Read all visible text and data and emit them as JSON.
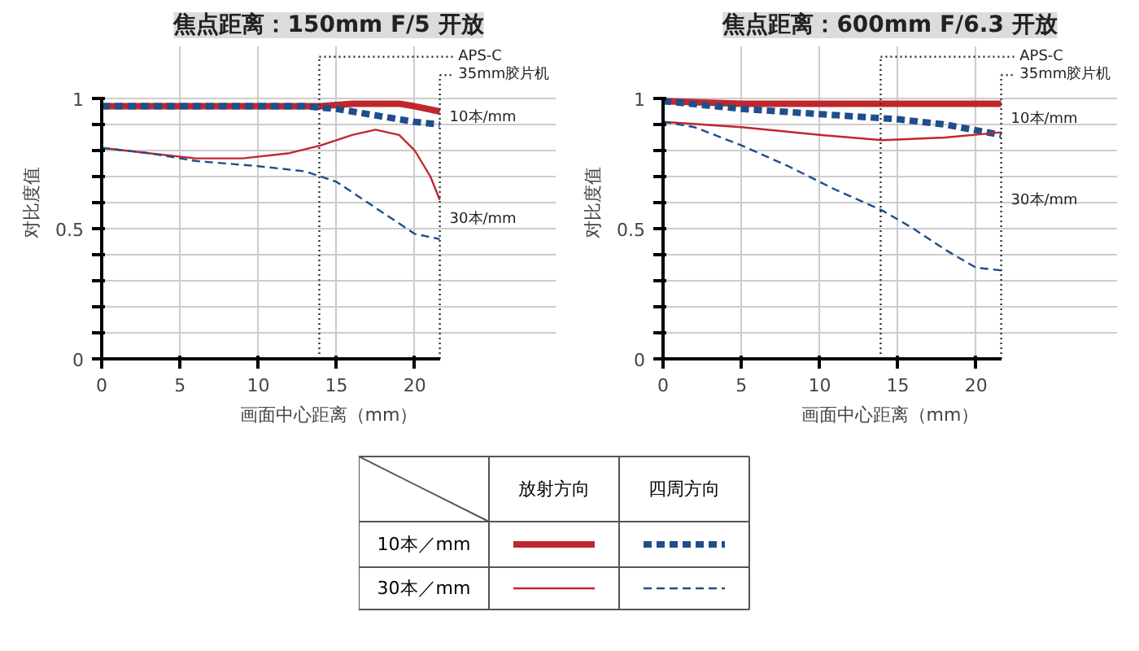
{
  "chart_data": [
    {
      "type": "line",
      "title": "焦点距离：150mm F/5 开放",
      "xlabel": "画面中心距离（mm）",
      "ylabel": "对比度值",
      "xlim": [
        0,
        21.6
      ],
      "ylim": [
        0,
        1
      ],
      "xticks": [
        0,
        5,
        10,
        15,
        20
      ],
      "yticks": [
        0,
        {
          "value": 0.1,
          "label": null
        },
        {
          "value": 0.2,
          "label": null
        },
        {
          "value": 0.3,
          "label": null
        },
        {
          "value": 0.4,
          "label": null
        },
        0.5,
        {
          "value": 0.6,
          "label": null
        },
        {
          "value": 0.7,
          "label": null
        },
        {
          "value": 0.8,
          "label": null
        },
        {
          "value": 0.9,
          "label": null
        },
        1
      ],
      "grid": true,
      "marker": "none",
      "ref_lines": [
        {
          "axis": "x",
          "value": 13.9,
          "label": "APS-C",
          "line_style": "dotted",
          "color": "#333333"
        },
        {
          "axis": "x",
          "value": 21.6,
          "label": "35mm胶片机",
          "line_style": "dotted",
          "color": "#333333"
        }
      ],
      "annotations": [
        "10本/mm",
        "30本/mm"
      ],
      "series": [
        {
          "color": "#c0272d",
          "line_style": "solid",
          "x": [
            0,
            3,
            6,
            9,
            12,
            14,
            16,
            17,
            19,
            20,
            21.6
          ],
          "values": [
            0.97,
            0.97,
            0.97,
            0.97,
            0.97,
            0.97,
            0.98,
            0.98,
            0.98,
            0.97,
            0.95
          ]
        },
        {
          "color": "#1f4e8c",
          "line_style": "dashed",
          "x": [
            0,
            3,
            6,
            9,
            12,
            13,
            15,
            17,
            18,
            20,
            21.6
          ],
          "values": [
            0.97,
            0.97,
            0.97,
            0.97,
            0.97,
            0.97,
            0.96,
            0.94,
            0.93,
            0.91,
            0.9
          ]
        },
        {
          "color": "#c0272d",
          "line_style": "solid",
          "x": [
            0,
            3,
            6,
            9,
            12,
            14,
            16,
            17.5,
            19,
            20,
            21,
            21.6
          ],
          "values": [
            0.81,
            0.79,
            0.77,
            0.77,
            0.79,
            0.82,
            0.86,
            0.88,
            0.86,
            0.8,
            0.7,
            0.61
          ]
        },
        {
          "color": "#1f4e8c",
          "line_style": "dashed",
          "x": [
            0,
            3,
            6,
            10,
            13,
            15,
            17,
            19,
            20,
            21.6
          ],
          "values": [
            0.81,
            0.79,
            0.76,
            0.74,
            0.72,
            0.68,
            0.6,
            0.52,
            0.48,
            0.46
          ]
        }
      ]
    },
    {
      "type": "line",
      "title": "焦点距离：600mm F/6.3 开放",
      "xlabel": "画面中心距离（mm）",
      "ylabel": "对比度值",
      "xlim": [
        0,
        21.6
      ],
      "ylim": [
        0,
        1
      ],
      "xticks": [
        0,
        5,
        10,
        15,
        20
      ],
      "yticks": [
        0,
        {
          "value": 0.1,
          "label": null
        },
        {
          "value": 0.2,
          "label": null
        },
        {
          "value": 0.3,
          "label": null
        },
        {
          "value": 0.4,
          "label": null
        },
        0.5,
        {
          "value": 0.6,
          "label": null
        },
        {
          "value": 0.7,
          "label": null
        },
        {
          "value": 0.8,
          "label": null
        },
        {
          "value": 0.9,
          "label": null
        },
        1
      ],
      "grid": true,
      "marker": "none",
      "ref_lines": [
        {
          "axis": "x",
          "value": 13.9,
          "label": "APS-C",
          "line_style": "dotted",
          "color": "#333333"
        },
        {
          "axis": "x",
          "value": 21.6,
          "label": "35mm胶片机",
          "line_style": "dotted",
          "color": "#333333"
        }
      ],
      "annotations": [
        "10本/mm",
        "30本/mm"
      ],
      "series": [
        {
          "color": "#c0272d",
          "line_style": "solid",
          "x": [
            0,
            5,
            10,
            15,
            21.6
          ],
          "values": [
            0.99,
            0.98,
            0.98,
            0.98,
            0.98
          ]
        },
        {
          "color": "#1f4e8c",
          "line_style": "dashed",
          "x": [
            0,
            5,
            10,
            15,
            18,
            21.6
          ],
          "values": [
            0.99,
            0.96,
            0.94,
            0.92,
            0.9,
            0.86
          ]
        },
        {
          "color": "#c0272d",
          "line_style": "solid",
          "x": [
            0,
            5,
            10,
            14,
            18,
            21.6
          ],
          "values": [
            0.91,
            0.89,
            0.86,
            0.84,
            0.85,
            0.87
          ]
        },
        {
          "color": "#1f4e8c",
          "line_style": "dashed",
          "x": [
            0,
            2,
            5,
            8,
            11,
            14,
            16,
            18,
            20,
            21.6
          ],
          "values": [
            0.91,
            0.89,
            0.82,
            0.74,
            0.65,
            0.57,
            0.5,
            0.42,
            0.35,
            0.34
          ]
        }
      ]
    },
    {
      "type": "other",
      "annotations": [
        "放射方向",
        "四周方向",
        "10本／mm",
        "30本／mm"
      ],
      "series": [
        {
          "color": "#c0272d",
          "line_style": "solid"
        },
        {
          "color": "#1f4e8c",
          "line_style": "dashed"
        },
        {
          "color": "#c0272d",
          "line_style": "solid"
        },
        {
          "color": "#1f4e8c",
          "line_style": "dashed"
        }
      ]
    }
  ]
}
